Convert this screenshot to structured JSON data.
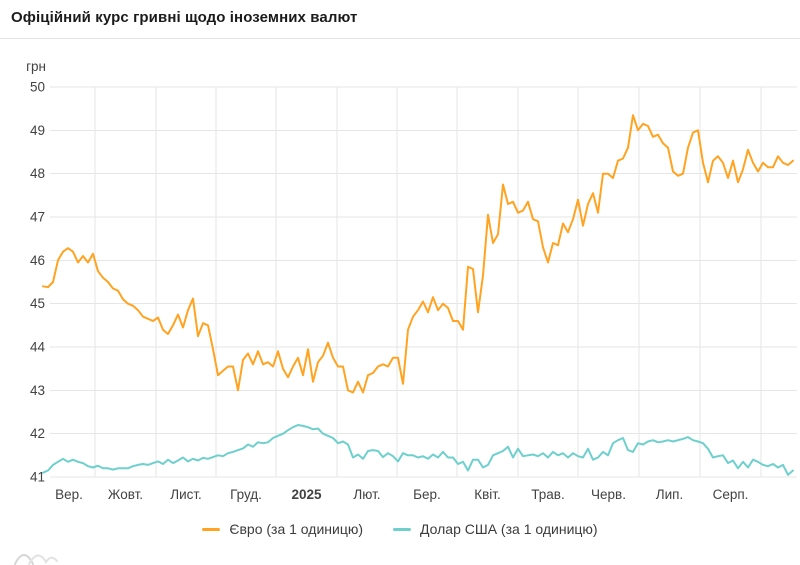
{
  "header": {
    "title": "Офіційний курс гривні щодо іноземних валют"
  },
  "chart_data": {
    "type": "line",
    "title": "Офіційний курс гривні щодо іноземних валют",
    "ylabel": "грн",
    "ylim": [
      41,
      50
    ],
    "yticks": [
      50,
      49,
      48,
      47,
      46,
      45,
      44,
      43,
      42,
      41
    ],
    "x_tick_labels": [
      "Вер.",
      "Жовт.",
      "Лист.",
      "Груд.",
      "2025",
      "Лют.",
      "Бер.",
      "Квіт.",
      "Трав.",
      "Черв.",
      "Лип.",
      "Серп."
    ],
    "bold_x_label": "2025",
    "grid": true,
    "grid_color": "#e6e6e6",
    "axis_text_color": "#424242",
    "legend_position": "bottom",
    "series": [
      {
        "id": "euro",
        "name": "Євро (за 1 одиницю)",
        "color": "#ffa320",
        "values": [
          45.4,
          45.38,
          45.5,
          46.0,
          46.2,
          46.28,
          46.2,
          45.95,
          46.1,
          45.95,
          46.15,
          45.75,
          45.6,
          45.5,
          45.35,
          45.3,
          45.1,
          45.0,
          44.95,
          44.85,
          44.7,
          44.65,
          44.6,
          44.68,
          44.4,
          44.3,
          44.5,
          44.75,
          44.45,
          44.85,
          45.12,
          44.25,
          44.55,
          44.5,
          43.95,
          43.35,
          43.45,
          43.55,
          43.55,
          43.0,
          43.7,
          43.85,
          43.6,
          43.9,
          43.6,
          43.65,
          43.55,
          43.9,
          43.5,
          43.3,
          43.55,
          43.75,
          43.35,
          43.95,
          43.2,
          43.65,
          43.8,
          44.1,
          43.75,
          43.55,
          43.55,
          43.0,
          42.95,
          43.2,
          42.95,
          43.35,
          43.4,
          43.55,
          43.6,
          43.55,
          43.75,
          43.75,
          43.15,
          44.4,
          44.7,
          44.85,
          45.05,
          44.8,
          45.15,
          44.85,
          45.0,
          44.9,
          44.6,
          44.6,
          44.4,
          45.85,
          45.8,
          44.8,
          45.65,
          47.05,
          46.4,
          46.6,
          47.75,
          47.3,
          47.35,
          47.1,
          47.15,
          47.35,
          46.95,
          46.9,
          46.3,
          45.95,
          46.4,
          46.35,
          46.85,
          46.65,
          46.95,
          47.4,
          46.8,
          47.3,
          47.55,
          47.1,
          48.0,
          48.0,
          47.9,
          48.3,
          48.35,
          48.6,
          49.35,
          49.0,
          49.15,
          49.1,
          48.85,
          48.9,
          48.7,
          48.6,
          48.05,
          47.95,
          48.0,
          48.6,
          48.95,
          49.0,
          48.25,
          47.8,
          48.3,
          48.4,
          48.25,
          47.9,
          48.3,
          47.8,
          48.1,
          48.55,
          48.25,
          48.05,
          48.25,
          48.15,
          48.15,
          48.4,
          48.25,
          48.2,
          48.3
        ]
      },
      {
        "id": "usd",
        "name": "Долар США (за 1 одиницю)",
        "color": "#6ed0cd",
        "values": [
          41.1,
          41.15,
          41.28,
          41.35,
          41.42,
          41.35,
          41.4,
          41.35,
          41.32,
          41.25,
          41.22,
          41.26,
          41.2,
          41.2,
          41.17,
          41.2,
          41.2,
          41.2,
          41.25,
          41.28,
          41.3,
          41.28,
          41.32,
          41.36,
          41.3,
          41.4,
          41.32,
          41.38,
          41.45,
          41.36,
          41.42,
          41.38,
          41.44,
          41.42,
          41.46,
          41.5,
          41.48,
          41.55,
          41.58,
          41.62,
          41.66,
          41.75,
          41.7,
          41.8,
          41.78,
          41.8,
          41.9,
          41.95,
          42.0,
          42.08,
          42.15,
          42.2,
          42.18,
          42.15,
          42.1,
          42.12,
          42.0,
          41.95,
          41.9,
          41.78,
          41.82,
          41.75,
          41.45,
          41.52,
          41.42,
          41.6,
          41.62,
          41.6,
          41.46,
          41.55,
          41.48,
          41.36,
          41.55,
          41.5,
          41.5,
          41.45,
          41.48,
          41.42,
          41.52,
          41.45,
          41.58,
          41.45,
          41.45,
          41.3,
          41.35,
          41.15,
          41.4,
          41.4,
          41.22,
          41.28,
          41.5,
          41.55,
          41.6,
          41.7,
          41.45,
          41.65,
          41.48,
          41.5,
          41.52,
          41.48,
          41.55,
          41.45,
          41.58,
          41.5,
          41.55,
          41.45,
          41.55,
          41.48,
          41.45,
          41.65,
          41.4,
          41.45,
          41.58,
          41.5,
          41.78,
          41.85,
          41.9,
          41.62,
          41.58,
          41.78,
          41.75,
          41.82,
          41.85,
          41.8,
          41.82,
          41.85,
          41.82,
          41.85,
          41.88,
          41.92,
          41.85,
          41.82,
          41.78,
          41.65,
          41.45,
          41.48,
          41.5,
          41.32,
          41.38,
          41.2,
          41.35,
          41.22,
          41.4,
          41.35,
          41.28,
          41.25,
          41.3,
          41.22,
          41.28,
          41.05,
          41.15
        ]
      }
    ]
  }
}
